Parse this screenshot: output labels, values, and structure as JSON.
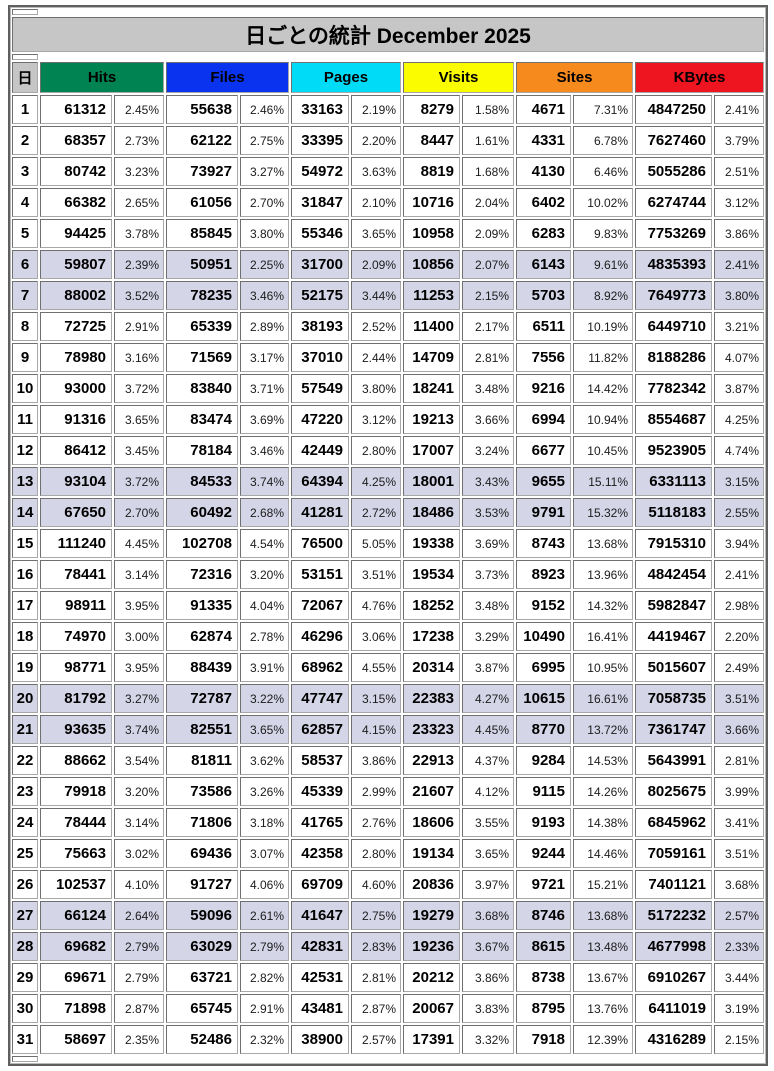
{
  "title": "日ごとの統計 December 2025",
  "colors": {
    "header_gray": "#c6c6c6",
    "weekend_row": "#d5d5e8",
    "hits": "#008352",
    "files": "#0a33f0",
    "pages": "#00dcf8",
    "visits": "#fcfc00",
    "sites": "#f78a1d",
    "kbytes": "#ee1520"
  },
  "chart_data": {
    "type": "table",
    "title": "日ごとの統計 December 2025",
    "day_col_label": "日",
    "columns": [
      {
        "label": "Hits",
        "color": "#008352"
      },
      {
        "label": "Files",
        "color": "#0a33f0"
      },
      {
        "label": "Pages",
        "color": "#00dcf8"
      },
      {
        "label": "Visits",
        "color": "#fcfc00"
      },
      {
        "label": "Sites",
        "color": "#f78a1d"
      },
      {
        "label": "KBytes",
        "color": "#ee1520"
      }
    ],
    "sub_columns_per_metric": [
      "value",
      "percent"
    ],
    "rows": [
      {
        "day": "1",
        "weekend": false,
        "cells": [
          "61312",
          "2.45%",
          "55638",
          "2.46%",
          "33163",
          "2.19%",
          "8279",
          "1.58%",
          "4671",
          "7.31%",
          "4847250",
          "2.41%"
        ]
      },
      {
        "day": "2",
        "weekend": false,
        "cells": [
          "68357",
          "2.73%",
          "62122",
          "2.75%",
          "33395",
          "2.20%",
          "8447",
          "1.61%",
          "4331",
          "6.78%",
          "7627460",
          "3.79%"
        ]
      },
      {
        "day": "3",
        "weekend": false,
        "cells": [
          "80742",
          "3.23%",
          "73927",
          "3.27%",
          "54972",
          "3.63%",
          "8819",
          "1.68%",
          "4130",
          "6.46%",
          "5055286",
          "2.51%"
        ]
      },
      {
        "day": "4",
        "weekend": false,
        "cells": [
          "66382",
          "2.65%",
          "61056",
          "2.70%",
          "31847",
          "2.10%",
          "10716",
          "2.04%",
          "6402",
          "10.02%",
          "6274744",
          "3.12%"
        ]
      },
      {
        "day": "5",
        "weekend": false,
        "cells": [
          "94425",
          "3.78%",
          "85845",
          "3.80%",
          "55346",
          "3.65%",
          "10958",
          "2.09%",
          "6283",
          "9.83%",
          "7753269",
          "3.86%"
        ]
      },
      {
        "day": "6",
        "weekend": true,
        "cells": [
          "59807",
          "2.39%",
          "50951",
          "2.25%",
          "31700",
          "2.09%",
          "10856",
          "2.07%",
          "6143",
          "9.61%",
          "4835393",
          "2.41%"
        ]
      },
      {
        "day": "7",
        "weekend": true,
        "cells": [
          "88002",
          "3.52%",
          "78235",
          "3.46%",
          "52175",
          "3.44%",
          "11253",
          "2.15%",
          "5703",
          "8.92%",
          "7649773",
          "3.80%"
        ]
      },
      {
        "day": "8",
        "weekend": false,
        "cells": [
          "72725",
          "2.91%",
          "65339",
          "2.89%",
          "38193",
          "2.52%",
          "11400",
          "2.17%",
          "6511",
          "10.19%",
          "6449710",
          "3.21%"
        ]
      },
      {
        "day": "9",
        "weekend": false,
        "cells": [
          "78980",
          "3.16%",
          "71569",
          "3.17%",
          "37010",
          "2.44%",
          "14709",
          "2.81%",
          "7556",
          "11.82%",
          "8188286",
          "4.07%"
        ]
      },
      {
        "day": "10",
        "weekend": false,
        "cells": [
          "93000",
          "3.72%",
          "83840",
          "3.71%",
          "57549",
          "3.80%",
          "18241",
          "3.48%",
          "9216",
          "14.42%",
          "7782342",
          "3.87%"
        ]
      },
      {
        "day": "11",
        "weekend": false,
        "cells": [
          "91316",
          "3.65%",
          "83474",
          "3.69%",
          "47220",
          "3.12%",
          "19213",
          "3.66%",
          "6994",
          "10.94%",
          "8554687",
          "4.25%"
        ]
      },
      {
        "day": "12",
        "weekend": false,
        "cells": [
          "86412",
          "3.45%",
          "78184",
          "3.46%",
          "42449",
          "2.80%",
          "17007",
          "3.24%",
          "6677",
          "10.45%",
          "9523905",
          "4.74%"
        ]
      },
      {
        "day": "13",
        "weekend": true,
        "cells": [
          "93104",
          "3.72%",
          "84533",
          "3.74%",
          "64394",
          "4.25%",
          "18001",
          "3.43%",
          "9655",
          "15.11%",
          "6331113",
          "3.15%"
        ]
      },
      {
        "day": "14",
        "weekend": true,
        "cells": [
          "67650",
          "2.70%",
          "60492",
          "2.68%",
          "41281",
          "2.72%",
          "18486",
          "3.53%",
          "9791",
          "15.32%",
          "5118183",
          "2.55%"
        ]
      },
      {
        "day": "15",
        "weekend": false,
        "cells": [
          "111240",
          "4.45%",
          "102708",
          "4.54%",
          "76500",
          "5.05%",
          "19338",
          "3.69%",
          "8743",
          "13.68%",
          "7915310",
          "3.94%"
        ]
      },
      {
        "day": "16",
        "weekend": false,
        "cells": [
          "78441",
          "3.14%",
          "72316",
          "3.20%",
          "53151",
          "3.51%",
          "19534",
          "3.73%",
          "8923",
          "13.96%",
          "4842454",
          "2.41%"
        ]
      },
      {
        "day": "17",
        "weekend": false,
        "cells": [
          "98911",
          "3.95%",
          "91335",
          "4.04%",
          "72067",
          "4.76%",
          "18252",
          "3.48%",
          "9152",
          "14.32%",
          "5982847",
          "2.98%"
        ]
      },
      {
        "day": "18",
        "weekend": false,
        "cells": [
          "74970",
          "3.00%",
          "62874",
          "2.78%",
          "46296",
          "3.06%",
          "17238",
          "3.29%",
          "10490",
          "16.41%",
          "4419467",
          "2.20%"
        ]
      },
      {
        "day": "19",
        "weekend": false,
        "cells": [
          "98771",
          "3.95%",
          "88439",
          "3.91%",
          "68962",
          "4.55%",
          "20314",
          "3.87%",
          "6995",
          "10.95%",
          "5015607",
          "2.49%"
        ]
      },
      {
        "day": "20",
        "weekend": true,
        "cells": [
          "81792",
          "3.27%",
          "72787",
          "3.22%",
          "47747",
          "3.15%",
          "22383",
          "4.27%",
          "10615",
          "16.61%",
          "7058735",
          "3.51%"
        ]
      },
      {
        "day": "21",
        "weekend": true,
        "cells": [
          "93635",
          "3.74%",
          "82551",
          "3.65%",
          "62857",
          "4.15%",
          "23323",
          "4.45%",
          "8770",
          "13.72%",
          "7361747",
          "3.66%"
        ]
      },
      {
        "day": "22",
        "weekend": false,
        "cells": [
          "88662",
          "3.54%",
          "81811",
          "3.62%",
          "58537",
          "3.86%",
          "22913",
          "4.37%",
          "9284",
          "14.53%",
          "5643991",
          "2.81%"
        ]
      },
      {
        "day": "23",
        "weekend": false,
        "cells": [
          "79918",
          "3.20%",
          "73586",
          "3.26%",
          "45339",
          "2.99%",
          "21607",
          "4.12%",
          "9115",
          "14.26%",
          "8025675",
          "3.99%"
        ]
      },
      {
        "day": "24",
        "weekend": false,
        "cells": [
          "78444",
          "3.14%",
          "71806",
          "3.18%",
          "41765",
          "2.76%",
          "18606",
          "3.55%",
          "9193",
          "14.38%",
          "6845962",
          "3.41%"
        ]
      },
      {
        "day": "25",
        "weekend": false,
        "cells": [
          "75663",
          "3.02%",
          "69436",
          "3.07%",
          "42358",
          "2.80%",
          "19134",
          "3.65%",
          "9244",
          "14.46%",
          "7059161",
          "3.51%"
        ]
      },
      {
        "day": "26",
        "weekend": false,
        "cells": [
          "102537",
          "4.10%",
          "91727",
          "4.06%",
          "69709",
          "4.60%",
          "20836",
          "3.97%",
          "9721",
          "15.21%",
          "7401121",
          "3.68%"
        ]
      },
      {
        "day": "27",
        "weekend": true,
        "cells": [
          "66124",
          "2.64%",
          "59096",
          "2.61%",
          "41647",
          "2.75%",
          "19279",
          "3.68%",
          "8746",
          "13.68%",
          "5172232",
          "2.57%"
        ]
      },
      {
        "day": "28",
        "weekend": true,
        "cells": [
          "69682",
          "2.79%",
          "63029",
          "2.79%",
          "42831",
          "2.83%",
          "19236",
          "3.67%",
          "8615",
          "13.48%",
          "4677998",
          "2.33%"
        ]
      },
      {
        "day": "29",
        "weekend": false,
        "cells": [
          "69671",
          "2.79%",
          "63721",
          "2.82%",
          "42531",
          "2.81%",
          "20212",
          "3.86%",
          "8738",
          "13.67%",
          "6910267",
          "3.44%"
        ]
      },
      {
        "day": "30",
        "weekend": false,
        "cells": [
          "71898",
          "2.87%",
          "65745",
          "2.91%",
          "43481",
          "2.87%",
          "20067",
          "3.83%",
          "8795",
          "13.76%",
          "6411019",
          "3.19%"
        ]
      },
      {
        "day": "31",
        "weekend": false,
        "cells": [
          "58697",
          "2.35%",
          "52486",
          "2.32%",
          "38900",
          "2.57%",
          "17391",
          "3.32%",
          "7918",
          "12.39%",
          "4316289",
          "2.15%"
        ]
      }
    ]
  }
}
